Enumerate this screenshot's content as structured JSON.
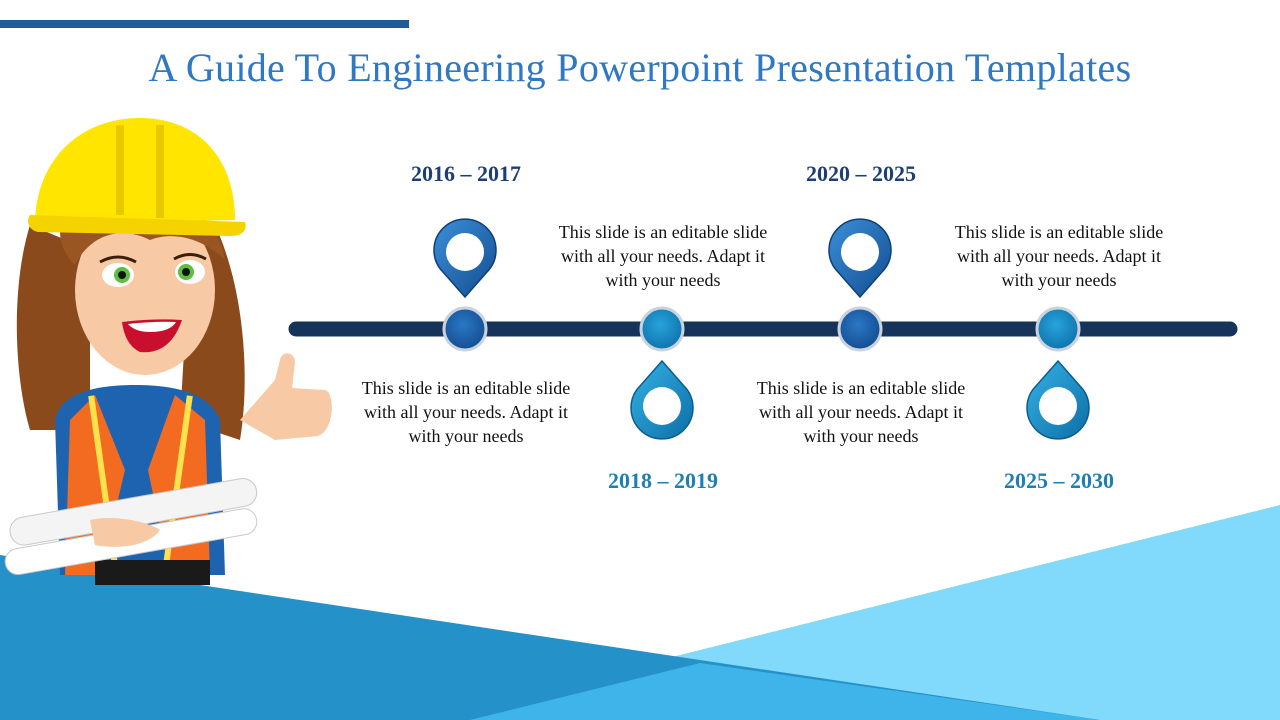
{
  "slide": {
    "title": "A Guide To Engineering Powerpoint Presentation Templates"
  },
  "timeline": {
    "milestones": [
      {
        "years": "2016 – 2017",
        "text": "This slide is an editable slide with all your needs. Adapt it with your needs"
      },
      {
        "years": "2018 – 2019",
        "text": "This slide is an editable slide with all your needs. Adapt it with your needs"
      },
      {
        "years": "2020 – 2025",
        "text": "This slide is an editable slide with all your needs. Adapt it with your needs"
      },
      {
        "years": "2025 – 2030",
        "text": "This slide is an editable slide with all your needs. Adapt it with your needs"
      }
    ]
  },
  "colors": {
    "title": "#2f78c3",
    "accent_bar": "#1f5b99",
    "timeline_line": "#163459",
    "year_dark": "#1e3f73",
    "year_light": "#1d7fb5",
    "bg_dark_blue": "#2591c9",
    "bg_light_blue": "#81d9fb",
    "bg_mid_blue": "#3fb4ea"
  },
  "icons": {
    "top_markers": "map-pin-icon",
    "bottom_markers": "drop-pin-icon",
    "illustration": "engineer-woman-hard-hat"
  }
}
